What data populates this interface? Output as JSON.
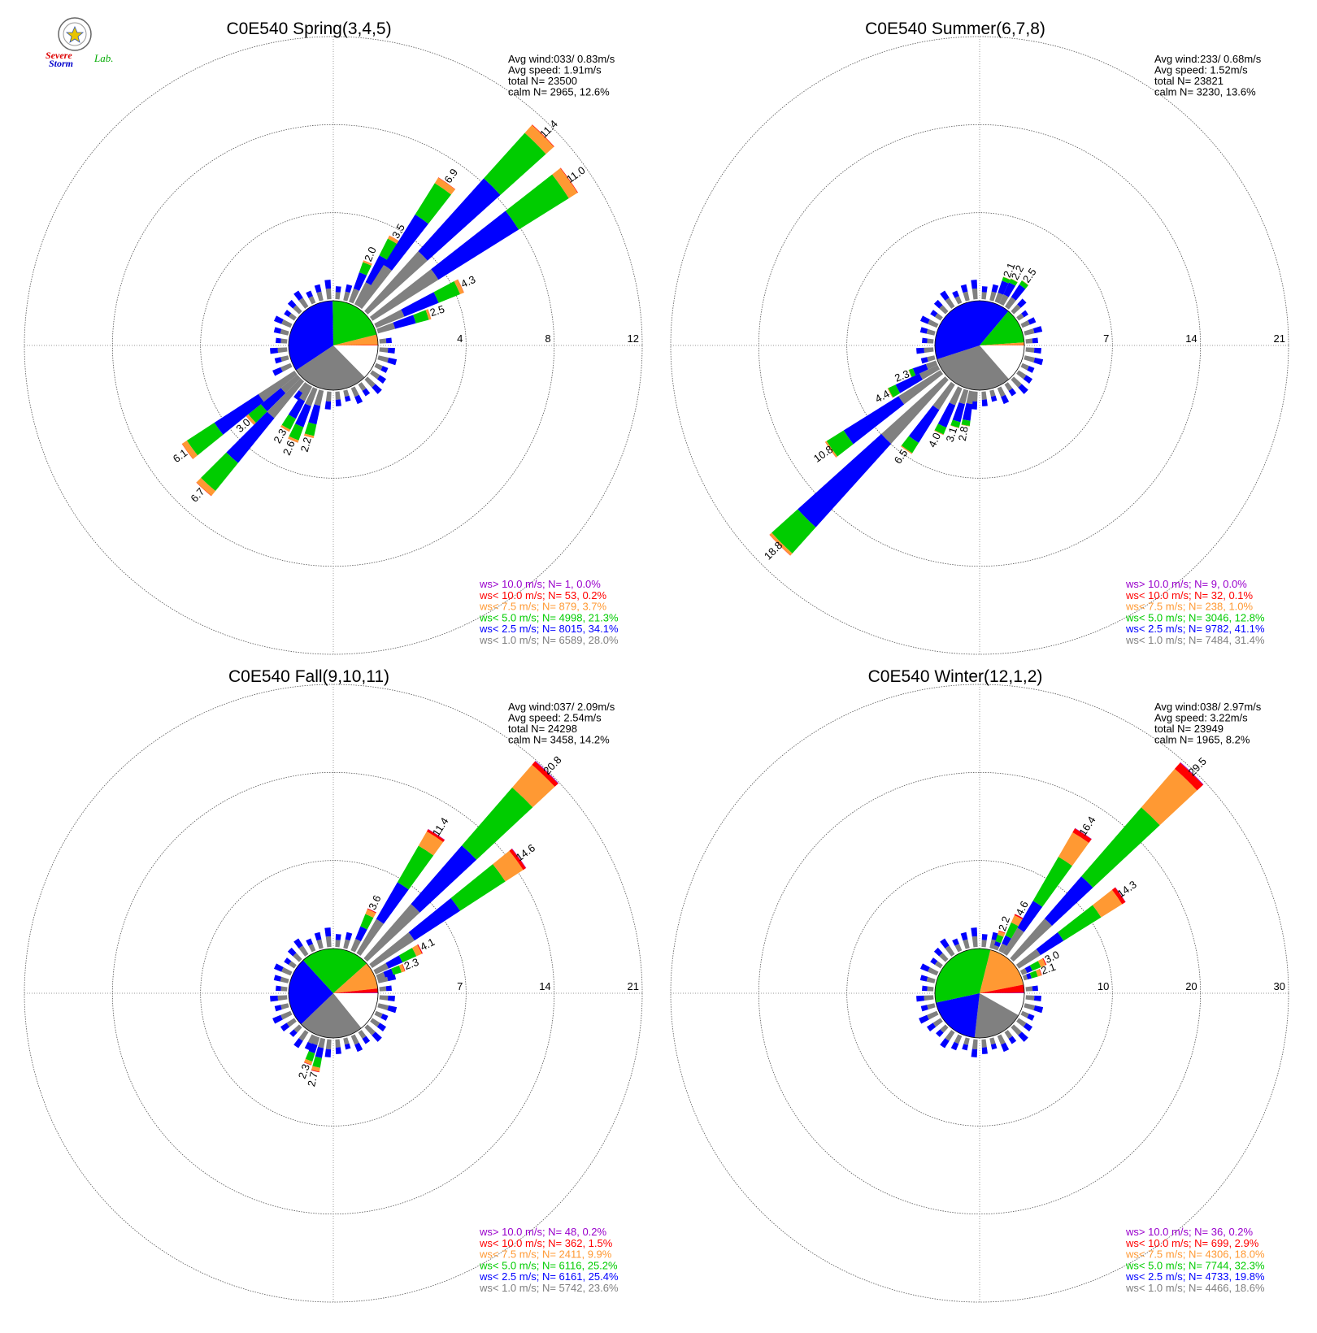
{
  "logo": {
    "lab_word_1": "Severe",
    "lab_word_2": "Storm",
    "lab_word_3": "Lab."
  },
  "colors": {
    "calm": "#808080",
    "lt1": "#808080",
    "lt2_5": "#0000ff",
    "lt5": "#00cc00",
    "lt7_5": "#ff9933",
    "lt10": "#ff0000",
    "gt10": "#9900cc"
  },
  "chart_data": [
    {
      "type": "wind-rose",
      "title": "C0E540 Spring(3,4,5)",
      "stats": [
        "Avg wind:033/ 0.83m/s",
        "Avg speed: 1.91m/s",
        "total N=       23500",
        "calm N=   2965,  12.6%"
      ],
      "ring_max": 12,
      "ring_labels": [
        "4",
        "8",
        "12"
      ],
      "hub_pct": [
        12.6,
        28.0,
        34.1,
        21.3,
        3.7,
        0.2,
        0.0
      ],
      "sectors": [
        {
          "deg": 22.5,
          "total": 2.0,
          "label": "2.0"
        },
        {
          "deg": 30,
          "total": 3.5,
          "label": "3.5"
        },
        {
          "deg": 35,
          "total": 6.9,
          "label": "6.9"
        },
        {
          "deg": 45,
          "total": 11.4,
          "label": "11.4"
        },
        {
          "deg": 55,
          "total": 11.0,
          "label": "11.0"
        },
        {
          "deg": 65,
          "total": 4.3,
          "label": "4.3"
        },
        {
          "deg": 72,
          "total": 2.5,
          "label": "2.5"
        },
        {
          "deg": 195,
          "total": 2.2,
          "label": "2.2"
        },
        {
          "deg": 203,
          "total": 2.6,
          "label": "2.6"
        },
        {
          "deg": 210,
          "total": 2.3,
          "label": "2.3"
        },
        {
          "deg": 228,
          "total": 3.0,
          "label": "3.0"
        },
        {
          "deg": 234,
          "total": 6.1,
          "label": "6.1"
        },
        {
          "deg": 222,
          "total": 6.7,
          "label": "6.7"
        }
      ],
      "legend": [
        {
          "text": "ws> 10.0 m/s; N=     1,  0.0%",
          "color": "#9900cc"
        },
        {
          "text": "ws< 10.0 m/s; N=    53,  0.2%",
          "color": "#ff0000"
        },
        {
          "text": "ws<  7.5 m/s; N=   879,  3.7%",
          "color": "#ff9933"
        },
        {
          "text": "ws<  5.0 m/s; N=  4998, 21.3%",
          "color": "#00cc00"
        },
        {
          "text": "ws<  2.5 m/s; N=  8015, 34.1%",
          "color": "#0000ff"
        },
        {
          "text": "ws<  1.0 m/s; N=  6589, 28.0%",
          "color": "#808080"
        }
      ]
    },
    {
      "type": "wind-rose",
      "title": "C0E540 Summer(6,7,8)",
      "stats": [
        "Avg wind:233/ 0.68m/s",
        "Avg speed: 1.52m/s",
        "total N=       23821",
        "calm N=   3230,  13.6%"
      ],
      "ring_max": 21,
      "ring_labels": [
        "7",
        "14",
        "21"
      ],
      "hub_pct": [
        13.6,
        31.4,
        41.1,
        12.8,
        1.0,
        0.1,
        0.0
      ],
      "sectors": [
        {
          "deg": 22,
          "total": 2.1,
          "label": "2.1"
        },
        {
          "deg": 28,
          "total": 2.2,
          "label": "2.2"
        },
        {
          "deg": 36,
          "total": 2.5,
          "label": "2.5"
        },
        {
          "deg": 190,
          "total": 2.8,
          "label": "2.8"
        },
        {
          "deg": 197,
          "total": 3.1,
          "label": "3.1"
        },
        {
          "deg": 205,
          "total": 4.0,
          "label": "4.0"
        },
        {
          "deg": 215,
          "total": 6.5,
          "label": "6.5"
        },
        {
          "deg": 225,
          "total": 18.8,
          "label": "18.8"
        },
        {
          "deg": 235,
          "total": 10.8,
          "label": "10.8"
        },
        {
          "deg": 242,
          "total": 4.4,
          "label": "4.4"
        },
        {
          "deg": 248,
          "total": 2.3,
          "label": "2.3"
        }
      ],
      "legend": [
        {
          "text": "ws> 10.0 m/s; N=     9,  0.0%",
          "color": "#9900cc"
        },
        {
          "text": "ws< 10.0 m/s; N=    32,  0.1%",
          "color": "#ff0000"
        },
        {
          "text": "ws<  7.5 m/s; N=   238,  1.0%",
          "color": "#ff9933"
        },
        {
          "text": "ws<  5.0 m/s; N=  3046, 12.8%",
          "color": "#00cc00"
        },
        {
          "text": "ws<  2.5 m/s; N=  9782, 41.1%",
          "color": "#0000ff"
        },
        {
          "text": "ws<  1.0 m/s; N=  7484, 31.4%",
          "color": "#808080"
        }
      ]
    },
    {
      "type": "wind-rose",
      "title": "C0E540 Fall(9,10,11)",
      "stats": [
        "Avg wind:037/ 2.09m/s",
        "Avg speed: 2.54m/s",
        "total N=       24298",
        "calm N=   3458,  14.2%"
      ],
      "ring_max": 21,
      "ring_labels": [
        "7",
        "14",
        "21"
      ],
      "hub_pct": [
        14.2,
        23.6,
        25.4,
        25.2,
        9.9,
        1.5,
        0.2
      ],
      "sectors": [
        {
          "deg": 25,
          "total": 3.6,
          "label": "3.6"
        },
        {
          "deg": 33,
          "total": 11.4,
          "label": "11.4"
        },
        {
          "deg": 44,
          "total": 20.8,
          "label": "20.8"
        },
        {
          "deg": 54,
          "total": 14.6,
          "label": "14.6"
        },
        {
          "deg": 63,
          "total": 4.1,
          "label": "4.1"
        },
        {
          "deg": 70,
          "total": 2.3,
          "label": "2.3"
        },
        {
          "deg": 193,
          "total": 2.7,
          "label": "2.7"
        },
        {
          "deg": 200,
          "total": 2.3,
          "label": "2.3"
        }
      ],
      "legend": [
        {
          "text": "ws> 10.0 m/s; N=    48,  0.2%",
          "color": "#9900cc"
        },
        {
          "text": "ws< 10.0 m/s; N=   362,  1.5%",
          "color": "#ff0000"
        },
        {
          "text": "ws<  7.5 m/s; N=  2411,  9.9%",
          "color": "#ff9933"
        },
        {
          "text": "ws<  5.0 m/s; N=  6116, 25.2%",
          "color": "#00cc00"
        },
        {
          "text": "ws<  2.5 m/s; N=  6161, 25.4%",
          "color": "#0000ff"
        },
        {
          "text": "ws<  1.0 m/s; N=  5742, 23.6%",
          "color": "#808080"
        }
      ]
    },
    {
      "type": "wind-rose",
      "title": "C0E540 Winter(12,1,2)",
      "stats": [
        "Avg wind:038/ 2.97m/s",
        "Avg speed: 3.22m/s",
        "total N=       23949",
        "calm N=   1965,   8.2%"
      ],
      "ring_max": 30,
      "ring_labels": [
        "10",
        "20",
        "30"
      ],
      "hub_pct": [
        8.2,
        18.6,
        19.8,
        32.3,
        18.0,
        2.9,
        0.2
      ],
      "sectors": [
        {
          "deg": 20,
          "total": 2.2,
          "label": "2.2"
        },
        {
          "deg": 27,
          "total": 4.6,
          "label": "4.6"
        },
        {
          "deg": 33,
          "total": 16.4,
          "label": "16.4"
        },
        {
          "deg": 44,
          "total": 29.5,
          "label": "29.5"
        },
        {
          "deg": 55,
          "total": 14.3,
          "label": "14.3"
        },
        {
          "deg": 64,
          "total": 3.0,
          "label": "3.0"
        },
        {
          "deg": 71,
          "total": 2.1,
          "label": "2.1"
        }
      ],
      "legend": [
        {
          "text": "ws> 10.0 m/s; N=    36,  0.2%",
          "color": "#9900cc"
        },
        {
          "text": "ws< 10.0 m/s; N=   699,  2.9%",
          "color": "#ff0000"
        },
        {
          "text": "ws<  7.5 m/s; N=  4306, 18.0%",
          "color": "#ff9933"
        },
        {
          "text": "ws<  5.0 m/s; N=  7744, 32.3%",
          "color": "#00cc00"
        },
        {
          "text": "ws<  2.5 m/s; N=  4733, 19.8%",
          "color": "#0000ff"
        },
        {
          "text": "ws<  1.0 m/s; N=  4466, 18.6%",
          "color": "#808080"
        }
      ]
    }
  ]
}
